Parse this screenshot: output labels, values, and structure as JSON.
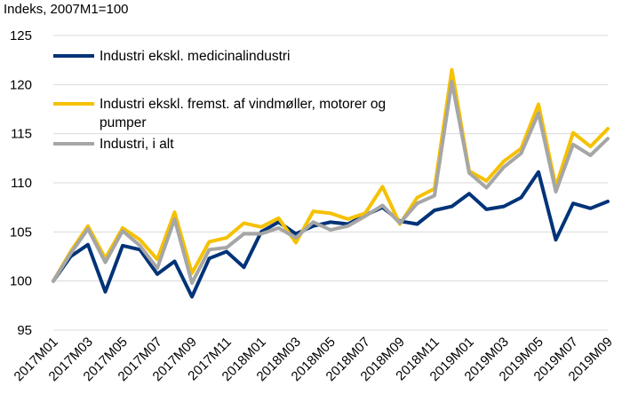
{
  "chart_data": {
    "type": "line",
    "ylabel": "Indeks, 2007M1=100",
    "ylim": [
      95,
      125
    ],
    "yticks": [
      95,
      100,
      105,
      110,
      115,
      120,
      125
    ],
    "grid": true,
    "legend_position": "top-left",
    "categories": [
      "2017M01",
      "2017M02",
      "2017M03",
      "2017M04",
      "2017M05",
      "2017M06",
      "2017M07",
      "2017M08",
      "2017M09",
      "2017M10",
      "2017M11",
      "2017M12",
      "2018M01",
      "2018M02",
      "2018M03",
      "2018M04",
      "2018M05",
      "2018M06",
      "2018M07",
      "2018M08",
      "2018M09",
      "2018M10",
      "2018M11",
      "2018M12",
      "2019M01",
      "2019M02",
      "2019M03",
      "2019M04",
      "2019M05",
      "2019M06",
      "2019M07",
      "2019M08",
      "2019M09"
    ],
    "x_tick_labels": [
      "2017M01",
      "2017M03",
      "2017M05",
      "2017M07",
      "2017M09",
      "2017M11",
      "2018M01",
      "2018M03",
      "2018M05",
      "2018M07",
      "2018M09",
      "2018M11",
      "2019M01",
      "2019M03",
      "2019M05",
      "2019M07",
      "2019M09"
    ],
    "series": [
      {
        "name": "Industri ekskl. medicinalindustri",
        "color": "#003378",
        "values": [
          100.0,
          102.5,
          103.7,
          98.9,
          103.6,
          103.2,
          100.7,
          102.0,
          98.4,
          102.3,
          103.0,
          101.4,
          105.0,
          106.0,
          104.8,
          105.6,
          106.0,
          105.8,
          106.7,
          107.5,
          106.1,
          105.8,
          107.2,
          107.6,
          108.9,
          107.3,
          107.6,
          108.5,
          111.1,
          104.2,
          107.9,
          107.4,
          108.1
        ]
      },
      {
        "name": "Industri ekskl. fremst. af vindmøller, motorer og pumper",
        "color": "#f5c100",
        "values": [
          100.0,
          103.0,
          105.6,
          102.3,
          105.4,
          104.2,
          102.2,
          107.0,
          100.8,
          104.0,
          104.4,
          105.9,
          105.5,
          106.4,
          103.9,
          107.1,
          106.9,
          106.3,
          106.9,
          109.6,
          105.8,
          108.5,
          109.4,
          121.5,
          111.2,
          110.2,
          112.2,
          113.5,
          118.0,
          109.6,
          115.1,
          113.7,
          115.5
        ]
      },
      {
        "name": "Industri, i alt",
        "color": "#a6a6a6",
        "values": [
          100.0,
          102.8,
          105.3,
          101.9,
          105.1,
          103.6,
          101.3,
          106.3,
          99.8,
          103.2,
          103.4,
          104.8,
          104.8,
          105.4,
          104.4,
          106.0,
          105.2,
          105.6,
          106.6,
          107.7,
          105.9,
          107.9,
          108.7,
          120.3,
          111.0,
          109.5,
          111.6,
          113.0,
          117.1,
          109.1,
          113.9,
          112.8,
          114.5
        ]
      }
    ]
  }
}
